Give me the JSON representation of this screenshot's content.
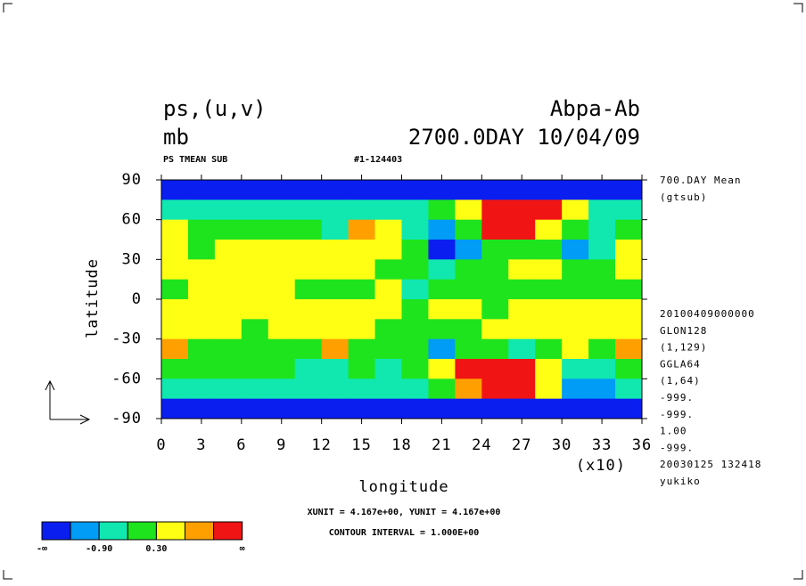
{
  "chart_data": {
    "type": "contour",
    "title": "ps,(u,v)",
    "units": "mb",
    "run": "Abpa-Ab",
    "time": "2700.0DAY 10/04/09",
    "subtitle": "PS TMEAN SUB",
    "id": "#1-124403",
    "xlabel": "longitude",
    "xscale_label": "(x10)",
    "ylabel": "latitude",
    "info": [
      "700.DAY Mean",
      "(gtsub)"
    ],
    "meta": [
      "20100409000000",
      "GLON128",
      "(1,129)",
      "GGLA64",
      "(1,64)",
      "-999.",
      "-999.",
      "1.00",
      "-999.",
      "20030125 132418",
      "yukiko"
    ],
    "notes": [
      "XUNIT = 4.167e+00, YUNIT = 4.167e+00",
      "CONTOUR INTERVAL = 1.000E+00"
    ],
    "xlim": [
      0,
      36
    ],
    "ylim": [
      -90,
      90
    ],
    "xticks": [
      0,
      3,
      6,
      9,
      12,
      15,
      18,
      21,
      24,
      27,
      30,
      33,
      36
    ],
    "yticks": [
      90,
      60,
      30,
      0,
      -30,
      -60,
      -90
    ],
    "levels": [
      -1.5,
      -0.9,
      -0.3,
      0.3,
      0.9,
      1.5
    ],
    "colors": [
      "#0a1ef0",
      "#009cf5",
      "#10e8b0",
      "#1ee41e",
      "#ffff14",
      "#ffa000",
      "#f01414"
    ],
    "colorbar_low": "-∞",
    "colorbar_high": "∞",
    "colorbar_ticks": [
      {
        "value": -0.9,
        "label": "-0.90"
      },
      {
        "value": 0.3,
        "label": "0.30"
      }
    ],
    "z": [
      [
        -2,
        -2,
        -2,
        -2,
        -2,
        -2,
        -2,
        -2,
        -2,
        -2,
        -2,
        -2,
        -2,
        -2,
        -2,
        -2,
        -2,
        -2
      ],
      [
        -0.6,
        -0.6,
        -0.6,
        -0.6,
        -0.6,
        -0.6,
        -0.6,
        -0.6,
        -0.6,
        -0.6,
        0,
        0.6,
        2,
        2,
        2,
        0.6,
        -0.6,
        -0.6
      ],
      [
        0.6,
        0,
        0,
        0,
        0,
        0,
        -0.6,
        1.2,
        0.6,
        -0.6,
        -1.2,
        0,
        2,
        2,
        0.6,
        0,
        -0.6,
        0
      ],
      [
        0.6,
        0,
        0.6,
        0.6,
        0.6,
        0.6,
        0.6,
        0.6,
        0.6,
        0,
        -2,
        -1.2,
        0,
        0,
        0,
        -1.2,
        -0.6,
        0.6
      ],
      [
        0.6,
        0.6,
        0.6,
        0.6,
        0.6,
        0.6,
        0.6,
        0.6,
        0,
        0,
        -0.6,
        0,
        0,
        0.6,
        0.6,
        0,
        0,
        0.6
      ],
      [
        0,
        0.6,
        0.6,
        0.6,
        0.6,
        0,
        0,
        0,
        0.6,
        -0.6,
        0,
        0,
        0,
        0,
        0,
        0,
        0,
        0
      ],
      [
        0.6,
        0.6,
        0.6,
        0.6,
        0.6,
        0.6,
        0.6,
        0.6,
        0.6,
        0,
        0.6,
        0.6,
        0,
        0.6,
        0.6,
        0.6,
        0.6,
        0.6
      ],
      [
        0.6,
        0.6,
        0.6,
        0,
        0.6,
        0.6,
        0.6,
        0.6,
        0,
        0,
        0,
        0,
        0.6,
        0.6,
        0.6,
        0.6,
        0.6,
        0.6
      ],
      [
        1.2,
        0,
        0,
        0,
        0,
        0,
        1.2,
        0,
        0,
        0,
        -1.2,
        0,
        0,
        -0.6,
        0,
        0.6,
        0,
        1.2
      ],
      [
        0,
        0,
        0,
        0,
        0,
        -0.6,
        -0.6,
        0,
        -0.6,
        0,
        0.6,
        2,
        2,
        2,
        0.6,
        -0.6,
        -0.6,
        0
      ],
      [
        -0.6,
        -0.6,
        -0.6,
        -0.6,
        -0.6,
        -0.6,
        -0.6,
        -0.6,
        -0.6,
        -0.6,
        0,
        1.2,
        2,
        2,
        0.6,
        -1.2,
        -1.2,
        -0.6
      ],
      [
        -2,
        -2,
        -2,
        -2,
        -2,
        -2,
        -2,
        -2,
        -2,
        -2,
        -2,
        -2,
        -2,
        -2,
        -2,
        -2,
        -2,
        -2
      ]
    ]
  }
}
